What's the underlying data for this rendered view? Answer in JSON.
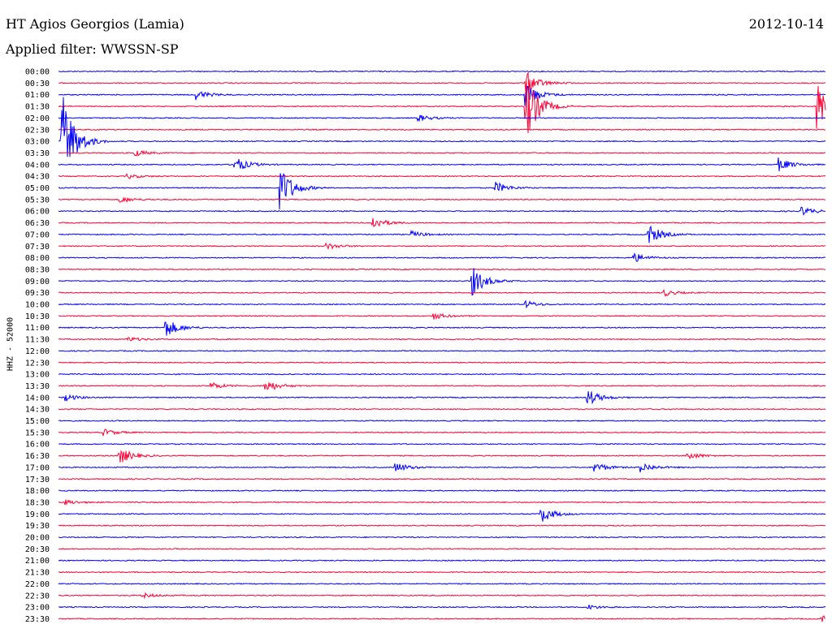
{
  "header": {
    "station": "HT Agios Georgios (Lamia)",
    "date": "2012-10-14",
    "filter": "Applied filter: WWSSN-SP"
  },
  "chart_data": {
    "type": "line",
    "title": "HT Agios Georgios (Lamia)",
    "ylabel": "HHZ - 52000",
    "colors": {
      "even": "#0000ff",
      "odd": "#ff0033"
    },
    "rows": [
      {
        "label": "00:00",
        "events": []
      },
      {
        "label": "00:30",
        "events": [
          {
            "t": 0.61,
            "amp": 14
          }
        ]
      },
      {
        "label": "01:00",
        "events": [
          {
            "t": 0.18,
            "amp": 6
          },
          {
            "t": 0.61,
            "amp": 14
          }
        ]
      },
      {
        "label": "01:30",
        "events": [
          {
            "t": 0.61,
            "amp": 40
          },
          {
            "t": 0.99,
            "amp": 30
          }
        ]
      },
      {
        "label": "02:00",
        "events": [
          {
            "t": 0.47,
            "amp": 4
          }
        ]
      },
      {
        "label": "02:30",
        "events": []
      },
      {
        "label": "03:00",
        "events": [
          {
            "t": 0.005,
            "amp": 60
          }
        ]
      },
      {
        "label": "03:30",
        "events": [
          {
            "t": 0.1,
            "amp": 4
          }
        ]
      },
      {
        "label": "04:00",
        "events": [
          {
            "t": 0.23,
            "amp": 10
          },
          {
            "t": 0.94,
            "amp": 8
          }
        ]
      },
      {
        "label": "04:30",
        "events": [
          {
            "t": 0.09,
            "amp": 3
          }
        ]
      },
      {
        "label": "05:00",
        "events": [
          {
            "t": 0.29,
            "amp": 26
          },
          {
            "t": 0.57,
            "amp": 7
          }
        ]
      },
      {
        "label": "05:30",
        "events": [
          {
            "t": 0.08,
            "amp": 4
          }
        ]
      },
      {
        "label": "06:00",
        "events": [
          {
            "t": 0.97,
            "amp": 5
          }
        ]
      },
      {
        "label": "06:30",
        "events": [
          {
            "t": 0.41,
            "amp": 8
          }
        ]
      },
      {
        "label": "07:00",
        "events": [
          {
            "t": 0.77,
            "amp": 12
          },
          {
            "t": 0.46,
            "amp": 4
          }
        ]
      },
      {
        "label": "07:30",
        "events": [
          {
            "t": 0.35,
            "amp": 4
          }
        ]
      },
      {
        "label": "08:00",
        "events": [
          {
            "t": 0.75,
            "amp": 6
          }
        ]
      },
      {
        "label": "08:30",
        "events": []
      },
      {
        "label": "09:00",
        "events": [
          {
            "t": 0.54,
            "amp": 18
          }
        ]
      },
      {
        "label": "09:30",
        "events": [
          {
            "t": 0.79,
            "amp": 4
          }
        ]
      },
      {
        "label": "10:00",
        "events": [
          {
            "t": 0.61,
            "amp": 4
          }
        ]
      },
      {
        "label": "10:30",
        "events": [
          {
            "t": 0.49,
            "amp": 4
          }
        ]
      },
      {
        "label": "11:00",
        "events": [
          {
            "t": 0.14,
            "amp": 12
          }
        ]
      },
      {
        "label": "11:30",
        "events": [
          {
            "t": 0.09,
            "amp": 3
          }
        ]
      },
      {
        "label": "12:00",
        "events": []
      },
      {
        "label": "12:30",
        "events": []
      },
      {
        "label": "13:00",
        "events": []
      },
      {
        "label": "13:30",
        "events": [
          {
            "t": 0.27,
            "amp": 8
          },
          {
            "t": 0.2,
            "amp": 4
          }
        ]
      },
      {
        "label": "14:00",
        "events": [
          {
            "t": 0.69,
            "amp": 10
          },
          {
            "t": 0.01,
            "amp": 4
          }
        ]
      },
      {
        "label": "14:30",
        "events": []
      },
      {
        "label": "15:00",
        "events": []
      },
      {
        "label": "15:30",
        "events": [
          {
            "t": 0.06,
            "amp": 4
          }
        ]
      },
      {
        "label": "16:00",
        "events": []
      },
      {
        "label": "16:30",
        "events": [
          {
            "t": 0.08,
            "amp": 10
          },
          {
            "t": 0.82,
            "amp": 5
          }
        ]
      },
      {
        "label": "17:00",
        "events": [
          {
            "t": 0.44,
            "amp": 6
          },
          {
            "t": 0.7,
            "amp": 6
          },
          {
            "t": 0.76,
            "amp": 6
          }
        ]
      },
      {
        "label": "17:30",
        "events": []
      },
      {
        "label": "18:00",
        "events": []
      },
      {
        "label": "18:30",
        "events": [
          {
            "t": 0.01,
            "amp": 3
          }
        ]
      },
      {
        "label": "19:00",
        "events": [
          {
            "t": 0.63,
            "amp": 10
          }
        ]
      },
      {
        "label": "19:30",
        "events": []
      },
      {
        "label": "20:00",
        "events": []
      },
      {
        "label": "20:30",
        "events": []
      },
      {
        "label": "21:00",
        "events": []
      },
      {
        "label": "21:30",
        "events": []
      },
      {
        "label": "22:00",
        "events": []
      },
      {
        "label": "22:30",
        "events": [
          {
            "t": 0.11,
            "amp": 3
          }
        ]
      },
      {
        "label": "23:00",
        "events": [
          {
            "t": 0.69,
            "amp": 3
          }
        ]
      },
      {
        "label": "23:30",
        "events": [
          {
            "t": 0.995,
            "amp": 4
          }
        ]
      }
    ]
  }
}
